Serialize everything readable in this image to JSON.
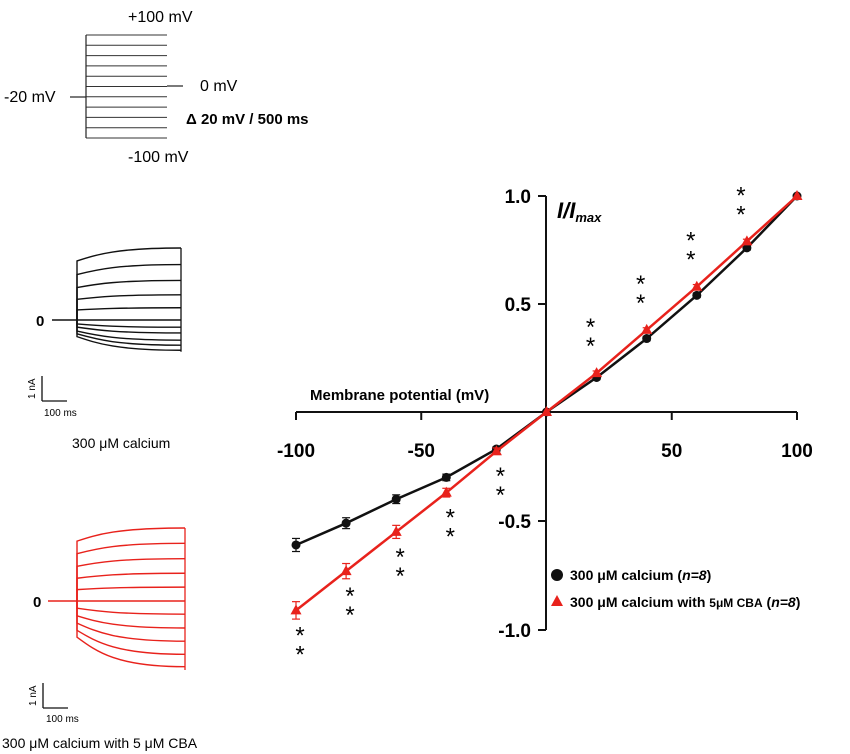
{
  "protocol": {
    "top_label": "+100 mV",
    "left_label": "-20 mV",
    "right_label": "0 mV",
    "step_label": "Δ 20 mV / 500 ms",
    "bottom_label": "-100 mV",
    "num_steps": 11
  },
  "traces": [
    {
      "id": "control",
      "color": "#111111",
      "zero_label": "0",
      "scale_y_label": "1 nA",
      "scale_x_label": "100 ms",
      "caption": "300 μM calcium",
      "levels": [
        1.0,
        0.77,
        0.55,
        0.35,
        0.17,
        0.0,
        -0.1,
        -0.18,
        -0.28,
        -0.35,
        -0.42
      ]
    },
    {
      "id": "cba",
      "color": "#e8221c",
      "zero_label": "0",
      "scale_y_label": "1 nA",
      "scale_x_label": "100 ms",
      "caption": "300 μM calcium with 5 μM CBA",
      "levels": [
        1.0,
        0.79,
        0.58,
        0.38,
        0.19,
        0.0,
        -0.18,
        -0.37,
        -0.55,
        -0.73,
        -0.9
      ]
    }
  ],
  "chart_data": {
    "type": "line",
    "title": "",
    "ylabel_main": "I/I",
    "ylabel_sub": "max",
    "xlabel": "Membrane potential (mV)",
    "xlim": [
      -100,
      100
    ],
    "ylim": [
      -1.0,
      1.0
    ],
    "xticks": [
      -100,
      -50,
      50,
      100
    ],
    "yticks": [
      1.0,
      0.5,
      -0.5,
      -1.0
    ],
    "xtick_labels": [
      "-100",
      "-50",
      "50",
      "100"
    ],
    "ytick_labels": [
      "1.0",
      "0.5",
      "-0.5",
      "-1.0"
    ],
    "grid": false,
    "legend_position": "bottom-right",
    "x": [
      -100,
      -80,
      -60,
      -40,
      -20,
      0,
      20,
      40,
      60,
      80,
      100
    ],
    "series": [
      {
        "name": "300 μM calcium",
        "legend_main": "300 μM calcium (",
        "legend_n": "n=8",
        "legend_close": ")",
        "color": "#111111",
        "marker": "circle",
        "values": [
          -0.61,
          -0.51,
          -0.4,
          -0.3,
          -0.17,
          0.0,
          0.16,
          0.34,
          0.54,
          0.76,
          1.0
        ],
        "errors": [
          0.03,
          0.025,
          0.02,
          0.015,
          0.01,
          0,
          0.01,
          0.01,
          0.01,
          0.01,
          0
        ]
      },
      {
        "name": "300 μM calcium with 5μM CBA",
        "legend_main": "300 μM calcium with ",
        "legend_small": "5μM CBA",
        "legend_n": "n=8",
        "legend_close": ")",
        "color": "#e8221c",
        "marker": "triangle",
        "values": [
          -0.91,
          -0.73,
          -0.55,
          -0.37,
          -0.18,
          0.0,
          0.18,
          0.38,
          0.58,
          0.79,
          1.0
        ],
        "errors": [
          0.04,
          0.035,
          0.03,
          0.02,
          0.015,
          0,
          0.01,
          0.01,
          0.01,
          0.01,
          0
        ]
      }
    ],
    "annotations": [
      {
        "text": "**",
        "x": -100,
        "side": "below"
      },
      {
        "text": "**",
        "x": -80,
        "side": "below"
      },
      {
        "text": "**",
        "x": -60,
        "side": "below"
      },
      {
        "text": "**",
        "x": -40,
        "side": "below"
      },
      {
        "text": "**",
        "x": -20,
        "side": "below"
      },
      {
        "text": "**",
        "x": 20,
        "side": "above"
      },
      {
        "text": "**",
        "x": 40,
        "side": "above"
      },
      {
        "text": "**",
        "x": 60,
        "side": "above"
      },
      {
        "text": "**",
        "x": 80,
        "side": "above"
      }
    ]
  }
}
